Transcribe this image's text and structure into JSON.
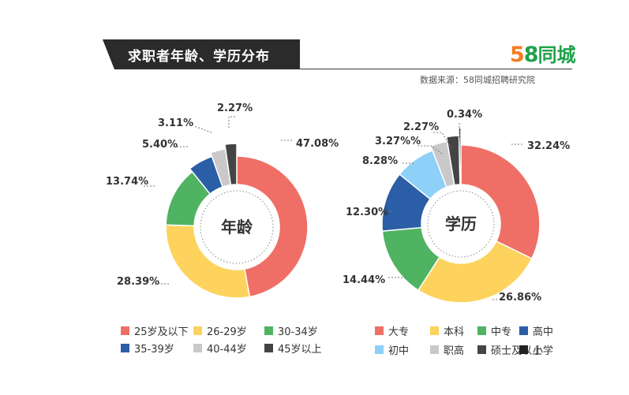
{
  "header": {
    "title": "求职者年龄、学历分布",
    "brand_num_a": "5",
    "brand_num_b": "8",
    "brand_text": "同城",
    "source": "数据来源：58同城招聘研究院"
  },
  "colors": {
    "title_bg": "#2b2b2b",
    "brand_orange": "#f47a20",
    "brand_green": "#1fa24a"
  },
  "chart_data": [
    {
      "type": "pie",
      "center_label": "年龄",
      "categories": [
        "25岁及以下",
        "26-29岁",
        "30-34岁",
        "35-39岁",
        "40-44岁",
        "45岁以上"
      ],
      "values": [
        47.08,
        28.39,
        13.74,
        5.4,
        3.11,
        2.27
      ],
      "value_labels": [
        "47.08%",
        "28.39%",
        "13.74%",
        "5.40%",
        "3.11%",
        "2.27%"
      ],
      "colors": [
        "#ef6f66",
        "#fdd35d",
        "#4fb361",
        "#2a5ea6",
        "#c9c9c9",
        "#444444"
      ]
    },
    {
      "type": "pie",
      "center_label": "学历",
      "categories": [
        "大专",
        "本科",
        "中专",
        "高中",
        "初中",
        "职高",
        "硕士及以上",
        "小学"
      ],
      "values": [
        32.24,
        26.86,
        14.44,
        12.3,
        8.28,
        3.27,
        2.27,
        0.34
      ],
      "value_labels": [
        "32.24%",
        "26.86%",
        "14.44%",
        "12.30%",
        "8.28%",
        "3.27%%",
        "2.27%",
        "0.34%"
      ],
      "colors": [
        "#ef6f66",
        "#fdd35d",
        "#4fb361",
        "#2a5ea6",
        "#8dd0f8",
        "#c9c9c9",
        "#444444",
        "#222222"
      ]
    }
  ]
}
